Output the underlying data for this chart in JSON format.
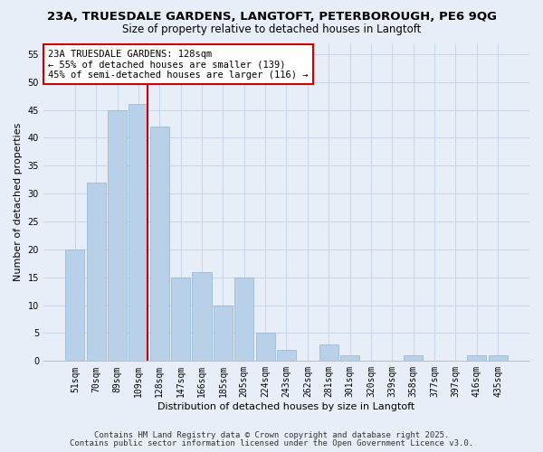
{
  "title_line1": "23A, TRUESDALE GARDENS, LANGTOFT, PETERBOROUGH, PE6 9QG",
  "title_line2": "Size of property relative to detached houses in Langtoft",
  "xlabel": "Distribution of detached houses by size in Langtoft",
  "ylabel": "Number of detached properties",
  "bar_labels": [
    "51sqm",
    "70sqm",
    "89sqm",
    "109sqm",
    "128sqm",
    "147sqm",
    "166sqm",
    "185sqm",
    "205sqm",
    "224sqm",
    "243sqm",
    "262sqm",
    "281sqm",
    "301sqm",
    "320sqm",
    "339sqm",
    "358sqm",
    "377sqm",
    "397sqm",
    "416sqm",
    "435sqm"
  ],
  "bar_values": [
    20,
    32,
    45,
    46,
    42,
    15,
    16,
    10,
    15,
    5,
    2,
    0,
    3,
    1,
    0,
    0,
    1,
    0,
    0,
    1,
    1
  ],
  "bar_color": "#b8d0e8",
  "bar_edge_color": "#90b4d4",
  "vline_color": "#cc0000",
  "annotation_text": "23A TRUESDALE GARDENS: 128sqm\n← 55% of detached houses are smaller (139)\n45% of semi-detached houses are larger (116) →",
  "annotation_box_color": "#ffffff",
  "annotation_box_edge": "#cc0000",
  "ylim": [
    0,
    57
  ],
  "yticks": [
    0,
    5,
    10,
    15,
    20,
    25,
    30,
    35,
    40,
    45,
    50,
    55
  ],
  "grid_color": "#c8d4e8",
  "background_color": "#e8eef8",
  "footnote1": "Contains HM Land Registry data © Crown copyright and database right 2025.",
  "footnote2": "Contains public sector information licensed under the Open Government Licence v3.0.",
  "title_fontsize": 9.5,
  "subtitle_fontsize": 8.5,
  "axis_label_fontsize": 8,
  "tick_fontsize": 7,
  "annotation_fontsize": 7.5,
  "footnote_fontsize": 6.5
}
